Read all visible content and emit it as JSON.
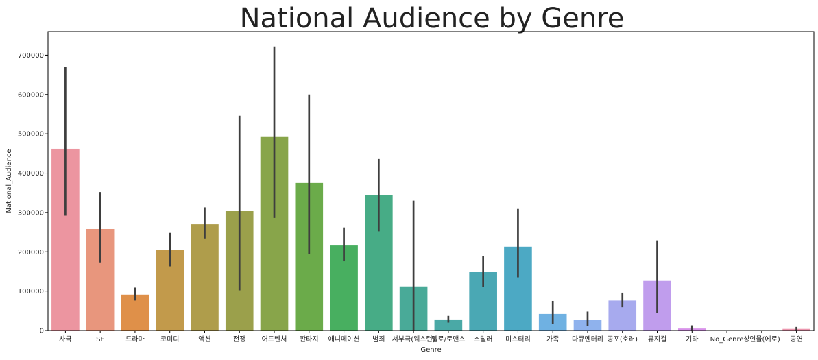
{
  "chart_data": {
    "type": "bar",
    "title": "National Audience by Genre",
    "xlabel": "Genre",
    "ylabel": "National_Audience",
    "ylim": [
      0,
      760000
    ],
    "yticks": [
      0,
      100000,
      200000,
      300000,
      400000,
      500000,
      600000,
      700000
    ],
    "ytick_labels": [
      "0",
      "100000",
      "200000",
      "300000",
      "400000",
      "500000",
      "600000",
      "700000"
    ],
    "grid": false,
    "legend": "none",
    "categories": [
      "사극",
      "SF",
      "드라마",
      "코미디",
      "액션",
      "전쟁",
      "어드벤처",
      "판타지",
      "애니메이션",
      "범죄",
      "서부극(웨스턴)",
      "멜로/로맨스",
      "스릴러",
      "미스터리",
      "가족",
      "다큐멘터리",
      "공포(호러)",
      "뮤지컬",
      "기타",
      "No_Genre",
      "성인물(에로)",
      "공연"
    ],
    "values": [
      462000,
      258000,
      91000,
      204000,
      270000,
      304000,
      492000,
      375000,
      216000,
      345000,
      112000,
      28000,
      149000,
      213000,
      42000,
      27000,
      76000,
      126000,
      5000,
      0,
      0,
      4000
    ],
    "ci_low": [
      292000,
      173000,
      76000,
      163000,
      234000,
      102000,
      286000,
      195000,
      176000,
      252000,
      0,
      20000,
      111000,
      135000,
      16000,
      12000,
      59000,
      44000,
      1000,
      0,
      0,
      1000
    ],
    "ci_high": [
      671000,
      352000,
      109000,
      248000,
      313000,
      546000,
      722000,
      600000,
      262000,
      436000,
      330000,
      37000,
      189000,
      309000,
      75000,
      48000,
      96000,
      229000,
      13000,
      0,
      0,
      9000
    ],
    "colors": [
      "#ec95a0",
      "#e8967d",
      "#df9049",
      "#c29a4b",
      "#af9d4b",
      "#9ba04b",
      "#88a54a",
      "#6bab4a",
      "#48af60",
      "#47ac86",
      "#49aa98",
      "#4aa9a6",
      "#4aa8b4",
      "#4ca9c4",
      "#6fb1e2",
      "#8fb2ed",
      "#a7aaee",
      "#c09ded",
      "#d892ea",
      "#e38fda",
      "#ea92c2",
      "#ec96ae"
    ],
    "errorbar_color": "#3e3e3e"
  }
}
